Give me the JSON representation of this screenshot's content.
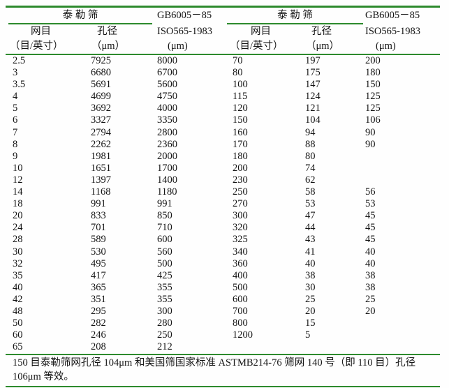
{
  "colors": {
    "rule_green": "#2d8a2d",
    "text": "#141414",
    "background": "#ffffff"
  },
  "table": {
    "header": {
      "tyler_group_label": "泰 勒 筛",
      "mesh_label": "网目",
      "mesh_unit": "（目/英寸）",
      "aperture_label": "孔径",
      "aperture_unit": "（μm）",
      "standard_line1": "GB6005－85",
      "standard_line2": "ISO565-1983",
      "standard_unit": "(μm)"
    },
    "rows": [
      [
        "2.5",
        "7925",
        "8000",
        "70",
        "197",
        "200"
      ],
      [
        "3",
        "6680",
        "6700",
        "80",
        "175",
        "180"
      ],
      [
        "3.5",
        "5691",
        "5600",
        "100",
        "147",
        "150"
      ],
      [
        "4",
        "4699",
        "4750",
        "115",
        "124",
        "125"
      ],
      [
        "5",
        "3692",
        "4000",
        "120",
        "121",
        "125"
      ],
      [
        "6",
        "3327",
        "3350",
        "150",
        "104",
        "106"
      ],
      [
        "7",
        "2794",
        "2800",
        "160",
        "94",
        "90"
      ],
      [
        "8",
        "2262",
        "2360",
        "170",
        "88",
        "90"
      ],
      [
        "9",
        "1981",
        "2000",
        "180",
        "80",
        ""
      ],
      [
        "10",
        "1651",
        "1700",
        "200",
        "74",
        ""
      ],
      [
        "12",
        "1397",
        "1400",
        "230",
        "62",
        ""
      ],
      [
        "14",
        "1168",
        "1180",
        "250",
        "58",
        "56"
      ],
      [
        "18",
        "991",
        "991",
        "270",
        "53",
        "53"
      ],
      [
        "20",
        "833",
        "850",
        "300",
        "47",
        "45"
      ],
      [
        "24",
        "701",
        "710",
        "320",
        "44",
        "45"
      ],
      [
        "28",
        "589",
        "600",
        "325",
        "43",
        "45"
      ],
      [
        "30",
        "530",
        "560",
        "340",
        "41",
        "40"
      ],
      [
        "32",
        "495",
        "500",
        "360",
        "40",
        "40"
      ],
      [
        "35",
        "417",
        "425",
        "400",
        "38",
        "38"
      ],
      [
        "40",
        "365",
        "355",
        "500",
        "30",
        "38"
      ],
      [
        "42",
        "351",
        "355",
        "600",
        "25",
        "25"
      ],
      [
        "48",
        "295",
        "300",
        "700",
        "20",
        "20"
      ],
      [
        "50",
        "282",
        "280",
        "800",
        "15",
        ""
      ],
      [
        "60",
        "246",
        "250",
        "1200",
        "5",
        ""
      ],
      [
        "65",
        "208",
        "212",
        "",
        "",
        ""
      ]
    ]
  },
  "note": {
    "line1": "150 目泰勒筛网孔径 104μm 和美国筛国家标准 ASTMB214-76 筛网 140 号（即 110 目）孔径",
    "line2": "106μm 等效。"
  }
}
